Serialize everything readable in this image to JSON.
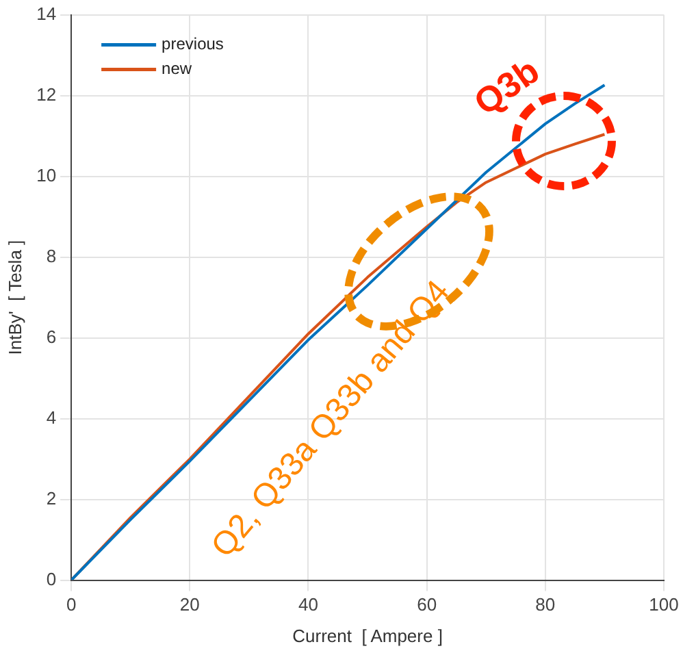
{
  "chart_data": {
    "type": "line",
    "xlabel": "Current  [ Ampere ]",
    "ylabel": "IntBy'  [ Tesla ]",
    "xlim": [
      0,
      100
    ],
    "xticks": [
      0,
      20,
      40,
      60,
      80,
      100
    ],
    "ylim": [
      0,
      14
    ],
    "yticks": [
      0,
      2,
      4,
      6,
      8,
      10,
      12,
      14
    ],
    "grid": true,
    "legend": "top left",
    "marker": "none",
    "line_style": "solid",
    "series": [
      {
        "name": "previous",
        "color": "#0072bd",
        "x": [
          0,
          10,
          20,
          30,
          40,
          50,
          60,
          65,
          70,
          75,
          80,
          85,
          90
        ],
        "values": [
          0,
          1.5,
          2.95,
          4.45,
          5.95,
          7.3,
          8.7,
          9.4,
          10.1,
          10.7,
          11.3,
          11.8,
          12.26
        ]
      },
      {
        "name": "new",
        "color": "#d95319",
        "x": [
          0,
          10,
          20,
          30,
          40,
          50,
          60,
          65,
          70,
          75,
          80,
          85,
          90
        ],
        "values": [
          0,
          1.55,
          3.0,
          4.55,
          6.1,
          7.5,
          8.75,
          9.35,
          9.85,
          10.2,
          10.55,
          10.8,
          11.04
        ]
      }
    ],
    "annotations": [
      "Q3b",
      "Q2, Q33a Q33b and Q4"
    ]
  }
}
